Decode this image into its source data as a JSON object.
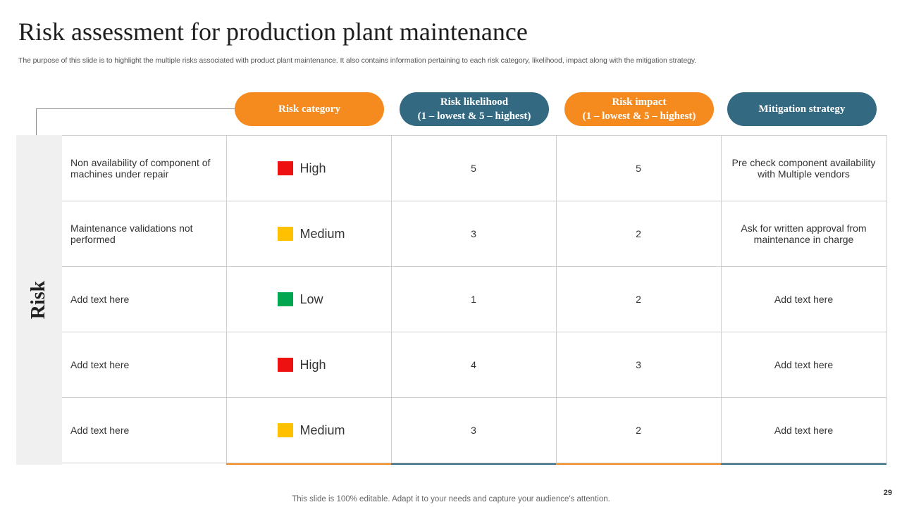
{
  "title": "Risk assessment for production plant maintenance",
  "subtitle": "The purpose of this slide is to highlight the multiple risks associated with product plant maintenance. It also contains information pertaining to each risk category, likelihood, impact along with the mitigation strategy.",
  "side_label": "Risk",
  "headers": [
    {
      "line1": "Risk category",
      "line2": ""
    },
    {
      "line1": "Risk likelihood",
      "line2": "(1 – lowest & 5 – highest)"
    },
    {
      "line1": "Risk impact",
      "line2": "(1 – lowest & 5 – highest)"
    },
    {
      "line1": "Mitigation strategy",
      "line2": ""
    }
  ],
  "colors": {
    "orange": "#f58a1f",
    "teal": "#336a82",
    "high": "#ee1111",
    "medium": "#ffc000",
    "low": "#00a650"
  },
  "rows": [
    {
      "risk": "Non availability  of component of machines under repair",
      "category": "High",
      "likelihood": "5",
      "impact": "5",
      "mitigation": "Pre check component availability  with Multiple vendors"
    },
    {
      "risk": "Maintenance validations not performed",
      "category": "Medium",
      "likelihood": "3",
      "impact": "2",
      "mitigation": "Ask for written approval from maintenance in charge"
    },
    {
      "risk": "Add text here",
      "category": "Low",
      "likelihood": "1",
      "impact": "2",
      "mitigation": "Add text here"
    },
    {
      "risk": "Add text here",
      "category": "High",
      "likelihood": "4",
      "impact": "3",
      "mitigation": "Add text here"
    },
    {
      "risk": "Add text here",
      "category": "Medium",
      "likelihood": "3",
      "impact": "2",
      "mitigation": "Add text here"
    }
  ],
  "footer": "This slide is 100% editable. Adapt it to your needs and capture your audience's attention.",
  "page_number": "29"
}
